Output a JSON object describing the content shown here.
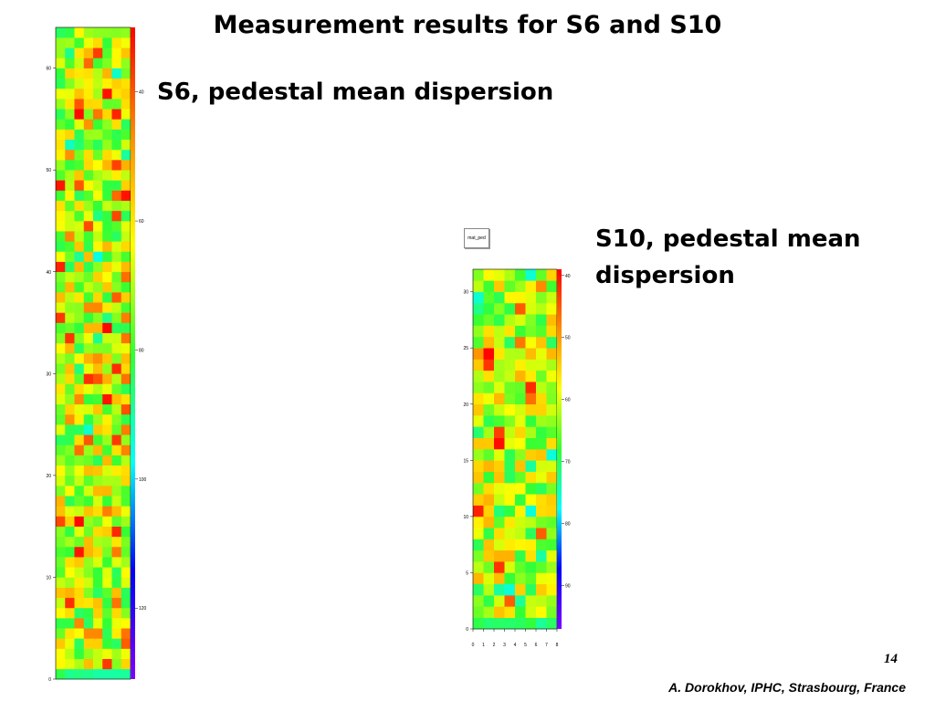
{
  "slide": {
    "title": "Measurement results for S6 and S10",
    "label_s6": "S6, pedestal mean dispersion",
    "label_s10": "S10, pedestal mean dispersion",
    "page_number": "14",
    "footer": "A. Dorokhov,  IPHC, Strasbourg, France"
  },
  "chart_data": [
    {
      "type": "heatmap",
      "name": "S6",
      "n_cols": 8,
      "n_rows": 64,
      "x_tick_labels": [],
      "y_tick_values": [
        0,
        10,
        20,
        30,
        40,
        50,
        60
      ],
      "colorbar_ticks": [
        40,
        60,
        80,
        100,
        120
      ],
      "colorbar_range": [
        30,
        131
      ],
      "colormap": [
        "#ff0000",
        "#ff8c00",
        "#ffff00",
        "#33ff33",
        "#00ffff",
        "#0000ff",
        "#8000ff"
      ]
    },
    {
      "type": "heatmap",
      "name": "S10",
      "stats_box_label": "mat_ped",
      "n_cols": 8,
      "n_rows": 32,
      "x_tick_labels": [
        "0",
        "1",
        "2",
        "3",
        "4",
        "5",
        "6",
        "7",
        "8"
      ],
      "y_tick_values": [
        0,
        5,
        10,
        15,
        20,
        25,
        30
      ],
      "colorbar_ticks": [
        40,
        50,
        60,
        70,
        80,
        90
      ],
      "colorbar_range": [
        39,
        97
      ],
      "colormap": [
        "#ff0000",
        "#ff8c00",
        "#ffff00",
        "#33ff33",
        "#00ffff",
        "#0000ff",
        "#8000ff"
      ]
    }
  ]
}
